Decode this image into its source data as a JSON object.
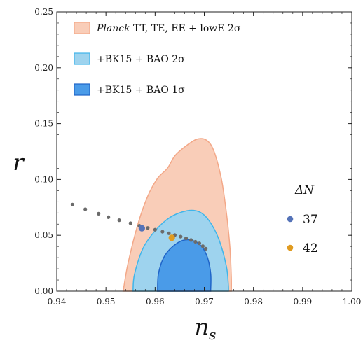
{
  "chart_data": {
    "type": "scatter",
    "xlabel": "n",
    "xlabel_sub": "s",
    "ylabel": "r",
    "xlim": [
      0.94,
      1.0
    ],
    "ylim": [
      0.0,
      0.25
    ],
    "x_ticks": [
      "0.94",
      "0.95",
      "0.96",
      "0.97",
      "0.98",
      "0.99",
      "1.00"
    ],
    "y_ticks": [
      "0.00",
      "0.05",
      "0.10",
      "0.15",
      "0.20",
      "0.25"
    ],
    "grid": false,
    "legend_position": "top-left",
    "legend": [
      {
        "prefix": "Planck",
        "label": " TT, TE, EE + lowE 2σ",
        "fill": "#f9cdb8",
        "stroke": "#f3a888"
      },
      {
        "prefix": "",
        "label": "+BK15 + BAO 2σ",
        "fill": "#9ed3ee",
        "stroke": "#3fb5ea"
      },
      {
        "prefix": "",
        "label": "+BK15 + BAO 1σ",
        "fill": "#4a9be8",
        "stroke": "#1f64c8"
      }
    ],
    "contours": [
      {
        "name": "Planck TT, TE, EE + lowE 2σ",
        "fill": "#f9cdb8",
        "stroke": "#f3a888",
        "points": [
          [
            0.9535,
            0.0
          ],
          [
            0.9545,
            0.025
          ],
          [
            0.9565,
            0.06
          ],
          [
            0.9585,
            0.085
          ],
          [
            0.9605,
            0.101
          ],
          [
            0.9625,
            0.11
          ],
          [
            0.964,
            0.121
          ],
          [
            0.966,
            0.129
          ],
          [
            0.9685,
            0.136
          ],
          [
            0.9705,
            0.135
          ],
          [
            0.972,
            0.125
          ],
          [
            0.9735,
            0.1
          ],
          [
            0.9745,
            0.07
          ],
          [
            0.9752,
            0.04
          ],
          [
            0.9755,
            0.012
          ],
          [
            0.9755,
            0.0
          ]
        ]
      },
      {
        "name": "+BK15 + BAO 2σ",
        "fill": "#9ed3ee",
        "stroke": "#3fb5ea",
        "points": [
          [
            0.9555,
            0.0
          ],
          [
            0.9558,
            0.015
          ],
          [
            0.9575,
            0.038
          ],
          [
            0.96,
            0.054
          ],
          [
            0.963,
            0.066
          ],
          [
            0.9665,
            0.072
          ],
          [
            0.969,
            0.071
          ],
          [
            0.971,
            0.063
          ],
          [
            0.973,
            0.046
          ],
          [
            0.9745,
            0.022
          ],
          [
            0.9749,
            0.005
          ],
          [
            0.9749,
            0.0
          ]
        ]
      },
      {
        "name": "+BK15 + BAO 1σ",
        "fill": "#4a9be8",
        "stroke": "#1f64c8",
        "points": [
          [
            0.9605,
            0.0
          ],
          [
            0.9607,
            0.016
          ],
          [
            0.962,
            0.032
          ],
          [
            0.9645,
            0.043
          ],
          [
            0.9668,
            0.046
          ],
          [
            0.969,
            0.042
          ],
          [
            0.9705,
            0.032
          ],
          [
            0.9713,
            0.016
          ],
          [
            0.9713,
            0.0
          ]
        ]
      }
    ],
    "trajectory": {
      "color": "#6b6b6b",
      "x": [
        0.9432,
        0.9458,
        0.9485,
        0.9505,
        0.9527,
        0.955,
        0.9568,
        0.9585,
        0.96,
        0.9615,
        0.9628,
        0.964,
        0.9652,
        0.9663,
        0.9673,
        0.9682,
        0.969,
        0.9697,
        0.9703
      ],
      "y": [
        0.0775,
        0.0733,
        0.0693,
        0.0662,
        0.0635,
        0.0608,
        0.0585,
        0.0566,
        0.055,
        0.0532,
        0.0518,
        0.0502,
        0.0488,
        0.0473,
        0.0458,
        0.0442,
        0.0428,
        0.0403,
        0.038
      ]
    },
    "highlighted_points": [
      {
        "label": "37",
        "x": 0.9573,
        "y": 0.0563,
        "color": "#5573b8"
      },
      {
        "label": "42",
        "x": 0.9634,
        "y": 0.0478,
        "color": "#e09b20"
      }
    ],
    "dn_label": "ΔN"
  }
}
